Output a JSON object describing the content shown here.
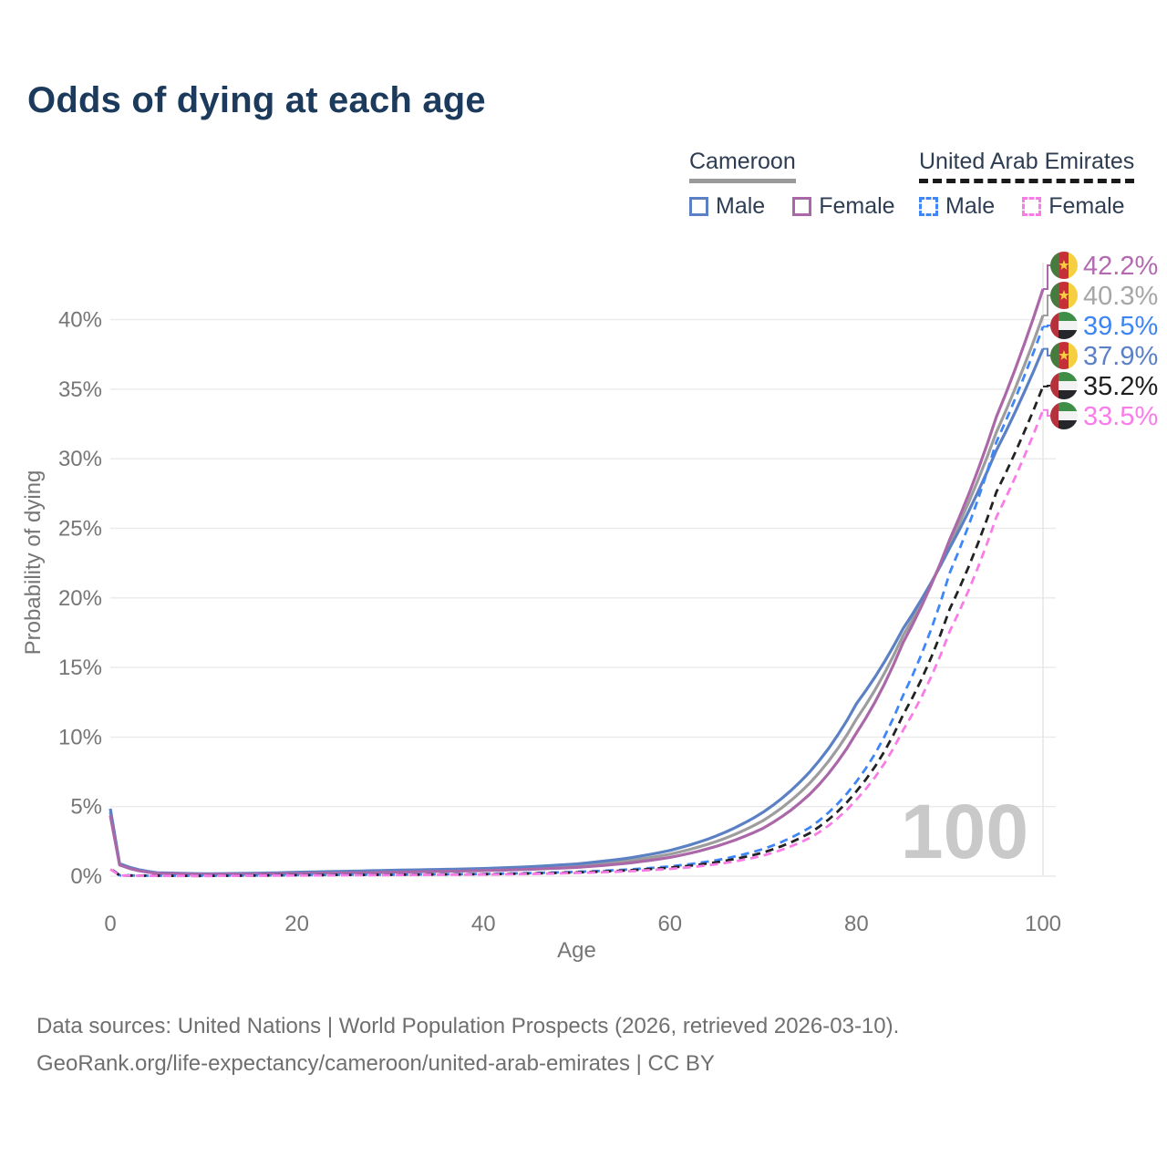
{
  "title": "Odds of dying at each age",
  "legend": {
    "groups": [
      {
        "label": "Cameroon",
        "line_style": "solid",
        "line_color": "#9a9a9a",
        "items": [
          {
            "label": "Male",
            "color": "#5b80c4",
            "dashed": false
          },
          {
            "label": "Female",
            "color": "#ab68a8",
            "dashed": false
          }
        ]
      },
      {
        "label": "United Arab Emirates",
        "line_style": "dashed",
        "line_color": "#1a1a1a",
        "items": [
          {
            "label": "Male",
            "color": "#3f86f6",
            "dashed": true
          },
          {
            "label": "Female",
            "color": "#f97ce6",
            "dashed": true
          }
        ]
      }
    ]
  },
  "chart_data": {
    "type": "line",
    "title": "Odds of dying at each age",
    "xlabel": "Age",
    "ylabel": "Probability of dying",
    "xlim": [
      0,
      100
    ],
    "ylim": [
      0,
      44
    ],
    "x_ticks": [
      "0",
      "20",
      "40",
      "60",
      "80",
      "100"
    ],
    "y_ticks": [
      "0%",
      "5%",
      "10%",
      "15%",
      "20%",
      "25%",
      "30%",
      "35%",
      "40%"
    ],
    "grid": "horizontal",
    "hover_age_label": "100",
    "ages": [
      0,
      1,
      5,
      10,
      15,
      20,
      25,
      30,
      35,
      40,
      45,
      50,
      55,
      60,
      65,
      70,
      75,
      80,
      85,
      90,
      95,
      100
    ],
    "series": [
      {
        "name": "Cameroon Female",
        "flag": "cameroon",
        "line_color": "#ab68a8",
        "label_color": "#b36ab0",
        "dashed": false,
        "end_label": "42.2%",
        "values": [
          4.35,
          0.8,
          0.2,
          0.13,
          0.15,
          0.19,
          0.23,
          0.28,
          0.34,
          0.4,
          0.49,
          0.63,
          0.9,
          1.35,
          2.15,
          3.45,
          5.9,
          10.3,
          16.8,
          24.2,
          33.0,
          42.2
        ]
      },
      {
        "name": "Cameroon Both sexes",
        "flag": "cameroon",
        "line_color": "#9d9d9d",
        "label_color": "#a6a6a6",
        "dashed": false,
        "end_label": "40.3%",
        "values": [
          4.6,
          0.85,
          0.22,
          0.15,
          0.17,
          0.23,
          0.29,
          0.35,
          0.41,
          0.47,
          0.58,
          0.75,
          1.06,
          1.58,
          2.5,
          4.0,
          6.7,
          11.3,
          17.3,
          23.9,
          31.9,
          40.3
        ]
      },
      {
        "name": "United Arab Emirates Male",
        "flag": "uae",
        "line_color": "#3f86f6",
        "label_color": "#3c85f2",
        "dashed": true,
        "end_label": "39.5%",
        "values": [
          0.6,
          0.06,
          0.03,
          0.03,
          0.05,
          0.08,
          0.1,
          0.11,
          0.13,
          0.16,
          0.22,
          0.31,
          0.46,
          0.7,
          1.15,
          1.95,
          3.5,
          6.8,
          13.0,
          21.8,
          31.2,
          39.5
        ]
      },
      {
        "name": "Cameroon Male",
        "flag": "cameroon",
        "line_color": "#5b80c4",
        "label_color": "#5b80c8",
        "dashed": false,
        "end_label": "37.9%",
        "values": [
          4.85,
          0.9,
          0.25,
          0.17,
          0.2,
          0.28,
          0.35,
          0.42,
          0.48,
          0.55,
          0.68,
          0.88,
          1.25,
          1.85,
          2.9,
          4.6,
          7.5,
          12.4,
          17.8,
          23.6,
          30.6,
          37.9
        ]
      },
      {
        "name": "United Arab Emirates Both sexes",
        "flag": "uae",
        "line_color": "#222222",
        "label_color": "#1f1f1f",
        "dashed": true,
        "end_label": "35.2%",
        "values": [
          0.55,
          0.05,
          0.03,
          0.02,
          0.04,
          0.07,
          0.09,
          0.1,
          0.12,
          0.14,
          0.19,
          0.27,
          0.4,
          0.61,
          1.0,
          1.7,
          3.1,
          6.1,
          11.6,
          19.2,
          27.6,
          35.2
        ]
      },
      {
        "name": "United Arab Emirates Female",
        "flag": "uae",
        "line_color": "#f97ce6",
        "label_color": "#fb7bea",
        "dashed": true,
        "end_label": "33.5%",
        "values": [
          0.5,
          0.05,
          0.02,
          0.02,
          0.03,
          0.05,
          0.07,
          0.08,
          0.1,
          0.12,
          0.16,
          0.23,
          0.34,
          0.52,
          0.86,
          1.48,
          2.75,
          5.5,
          10.5,
          17.6,
          25.8,
          33.5
        ]
      }
    ],
    "flag_colors": {
      "cameroon": {
        "green": "#477a3e",
        "red": "#c62f38",
        "yellow": "#f6cf40",
        "star": "#f6cf40"
      },
      "uae": {
        "red": "#b5323d",
        "green": "#3e8e47",
        "white": "#f2f2f2",
        "black": "#26272b"
      }
    }
  },
  "watermark": "100",
  "footer": {
    "line1": "Data sources: United Nations | World Population Prospects (2026, retrieved 2026-03-10).",
    "line2": "GeoRank.org/life-expectancy/cameroon/united-arab-emirates | CC BY"
  }
}
